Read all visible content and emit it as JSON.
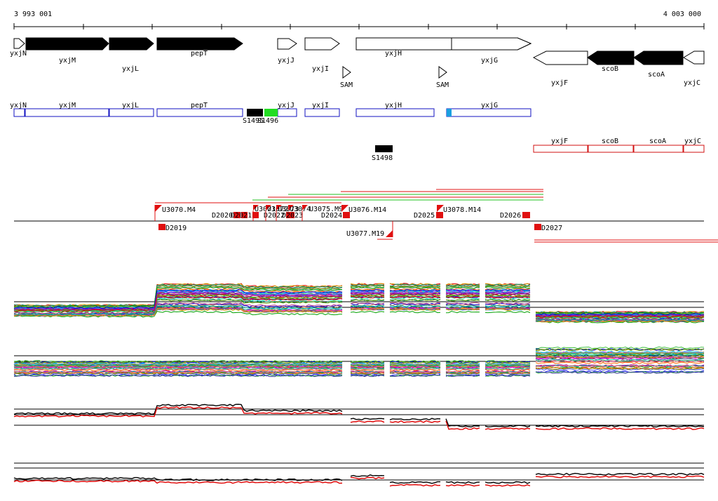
{
  "coordinates": {
    "start_label": "3 993 001",
    "end_label": "4 003 000"
  },
  "colors": {
    "forward_gene_fill": "#000000",
    "transcript_box": "#1010c0",
    "reverse_transcript_box": "#d01010",
    "segment_marker": "#e01010",
    "segment_forward_line": "#e01010",
    "segment_reverse_line": "#20c020",
    "sRNA_black": "#000000",
    "sRNA_green": "#22dd22",
    "sRNA_blue": "#1aa0e0",
    "profile_red": "#e00000",
    "profile_black": "#000000"
  },
  "genes": [
    {
      "label": "yxjN",
      "strand": "+",
      "filled": false
    },
    {
      "label": "yxjM",
      "strand": "+",
      "filled": true
    },
    {
      "label": "yxjL",
      "strand": "+",
      "filled": true
    },
    {
      "label": "pepT",
      "strand": "+",
      "filled": true
    },
    {
      "label": "yxjJ",
      "strand": "+",
      "filled": false
    },
    {
      "label": "yxjI",
      "strand": "+",
      "filled": false
    },
    {
      "label": "yxjH",
      "strand": "+",
      "filled": false
    },
    {
      "label": "yxjG",
      "strand": "+",
      "filled": false
    },
    {
      "label": "yxjF",
      "strand": "-",
      "filled": false
    },
    {
      "label": "scoB",
      "strand": "-",
      "filled": true
    },
    {
      "label": "scoA",
      "strand": "-",
      "filled": true
    },
    {
      "label": "yxjC",
      "strand": "-",
      "filled": false
    }
  ],
  "riboswitches": [
    {
      "label": "SAM"
    },
    {
      "label": "SAM"
    }
  ],
  "forward_transcripts": [
    {
      "label": "yxjN"
    },
    {
      "label": "yxjM"
    },
    {
      "label": "yxjL"
    },
    {
      "label": "pepT"
    },
    {
      "label": "yxjJ"
    },
    {
      "label": "yxjI"
    },
    {
      "label": "yxjH"
    },
    {
      "label": "yxjG"
    }
  ],
  "reverse_transcripts": [
    {
      "label": "yxjF"
    },
    {
      "label": "scoB"
    },
    {
      "label": "scoA"
    },
    {
      "label": "yxjC"
    }
  ],
  "small_rnas": [
    {
      "label": "S1495"
    },
    {
      "label": "S1496"
    },
    {
      "label": "S1498"
    }
  ],
  "segments_upper": [
    {
      "label": "U3070.M4"
    },
    {
      "label": "D2020"
    },
    {
      "label": "D2021"
    },
    {
      "label": "U3071"
    },
    {
      "label": "U3072"
    },
    {
      "label": "U3073"
    },
    {
      "label": "D2022"
    },
    {
      "label": "U3074"
    },
    {
      "label": "U3075.M9"
    },
    {
      "label": "D2023"
    },
    {
      "label": "D2024"
    },
    {
      "label": "U3076.M14"
    },
    {
      "label": "D2025"
    },
    {
      "label": "U3078.M14"
    },
    {
      "label": "D2026"
    }
  ],
  "segments_lower": [
    {
      "label": "D2019"
    },
    {
      "label": "U3077.M19"
    },
    {
      "label": "D2027"
    }
  ]
}
